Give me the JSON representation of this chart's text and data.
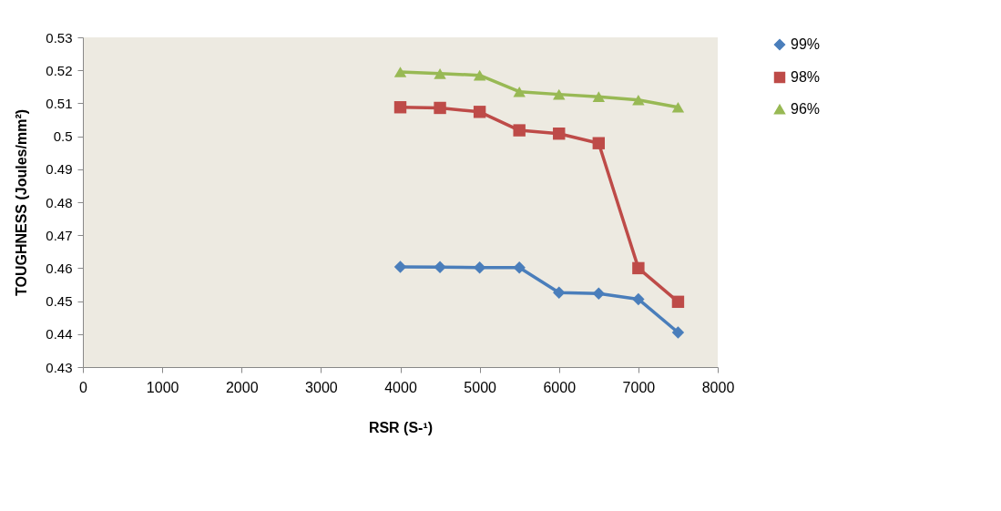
{
  "chart_data": {
    "type": "line",
    "xlabel": "RSR (S-¹)",
    "ylabel": "TOUGHNESS (Joules/mm²)",
    "x": [
      4000,
      4500,
      5000,
      5500,
      6000,
      6500,
      7000,
      7500
    ],
    "series": [
      {
        "name": "99%",
        "color": "#4a7ebb",
        "marker": "diamond",
        "values": [
          0.4604,
          0.4603,
          0.4602,
          0.4602,
          0.4526,
          0.4523,
          0.4506,
          0.4405
        ]
      },
      {
        "name": "98%",
        "color": "#be4b48",
        "marker": "square",
        "values": [
          0.5088,
          0.5086,
          0.5074,
          0.5018,
          0.5008,
          0.4979,
          0.46,
          0.4498
        ]
      },
      {
        "name": "96%",
        "color": "#98b954",
        "marker": "triangle",
        "values": [
          0.5195,
          0.519,
          0.5185,
          0.5135,
          0.5127,
          0.512,
          0.511,
          0.5088
        ]
      }
    ],
    "xlim": [
      0,
      8000
    ],
    "xticks": [
      0,
      1000,
      2000,
      3000,
      4000,
      5000,
      6000,
      7000,
      8000
    ],
    "ylim": [
      0.43,
      0.53
    ],
    "yticks": [
      0.43,
      0.44,
      0.45,
      0.46,
      0.47,
      0.48,
      0.49,
      0.5,
      0.51,
      0.52,
      0.53
    ],
    "grid": false,
    "legend": "right",
    "line_style": "solid"
  }
}
